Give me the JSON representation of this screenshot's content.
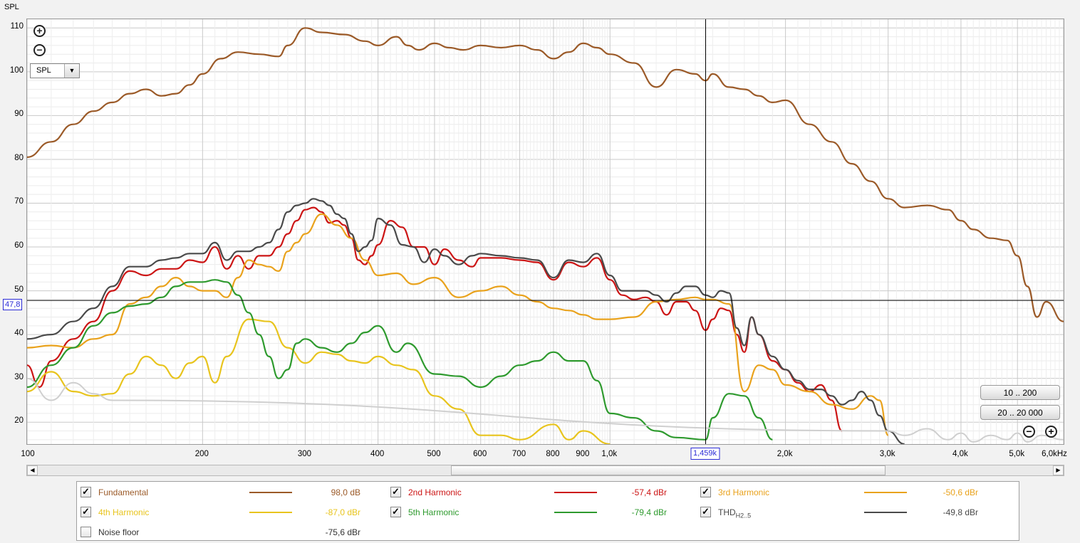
{
  "y_axis_title": "SPL",
  "cursor": {
    "y_readout": "47,8",
    "x_readout": "1,459k"
  },
  "measure_select": {
    "value": "SPL"
  },
  "range_buttons": [
    "10 .. 200",
    "20 .. 20 000"
  ],
  "colors": {
    "fundamental": "#9b5a28",
    "h2": "#cc1515",
    "h3": "#e9a21c",
    "h4": "#e8c41d",
    "h5": "#2e9a2e",
    "thd": "#4a4a4a",
    "noise": "#cfcfcf",
    "cursor": "#2b2bd6"
  },
  "legend": {
    "items": [
      {
        "name": "Fundamental",
        "value": "98,0 dB",
        "color": "#9b5a28",
        "checked": true
      },
      {
        "name": "2nd Harmonic",
        "value": "-57,4 dBr",
        "color": "#cc1515",
        "checked": true
      },
      {
        "name": "3rd Harmonic",
        "value": "-50,6 dBr",
        "color": "#e9a21c",
        "checked": true
      },
      {
        "name": "4th Harmonic",
        "value": "-87,0 dBr",
        "color": "#e8c41d",
        "checked": true
      },
      {
        "name": "5th Harmonic",
        "value": "-79,4 dBr",
        "color": "#2e9a2e",
        "checked": true
      },
      {
        "name": "THD",
        "name_sub": "H2..5",
        "value": "-49,8 dBr",
        "color": "#4a4a4a",
        "checked": true
      },
      {
        "name": "Noise floor",
        "value": "-75,6 dBr",
        "color": "",
        "checked": false
      }
    ]
  },
  "chart_data": {
    "type": "line",
    "xlabel": "Hz",
    "ylabel": "SPL",
    "x_scale": "log",
    "xlim": [
      100,
      6000
    ],
    "ylim": [
      15,
      112
    ],
    "grid": true,
    "x_tick_labels": [
      "100",
      "200",
      "300",
      "400",
      "500",
      "600",
      "700",
      "800",
      "900",
      "1,0k",
      "2,0k",
      "3,0k",
      "4,0k",
      "5,0k",
      "6,0kHz"
    ],
    "y_tick_labels": [
      "20",
      "30",
      "40",
      "50",
      "60",
      "70",
      "80",
      "90",
      "100",
      "110"
    ],
    "cursor": {
      "x": 1459,
      "y": 47.8
    },
    "series": [
      {
        "name": "Fundamental",
        "color": "#9b5a28",
        "x": [
          100,
          110,
          120,
          130,
          140,
          150,
          160,
          170,
          180,
          190,
          200,
          215,
          230,
          250,
          270,
          280,
          300,
          320,
          350,
          380,
          400,
          430,
          450,
          470,
          500,
          530,
          560,
          600,
          650,
          700,
          750,
          800,
          850,
          900,
          950,
          1000,
          1100,
          1200,
          1300,
          1400,
          1459,
          1500,
          1600,
          1700,
          1800,
          1900,
          2000,
          2200,
          2400,
          2600,
          2800,
          3000,
          3200,
          3500,
          3800,
          4000,
          4200,
          4500,
          4800,
          5000,
          5200,
          5400,
          5600,
          6000
        ],
        "y": [
          80.5,
          84,
          88,
          91,
          93,
          95,
          96,
          94.5,
          95,
          97,
          99.5,
          103,
          104.5,
          104,
          103.5,
          106,
          110,
          109,
          108.5,
          107,
          106,
          108,
          106,
          105,
          106.5,
          105.5,
          105,
          106,
          105.5,
          106,
          105,
          103,
          104.5,
          106.5,
          105.5,
          104,
          102,
          96.5,
          100.5,
          99.5,
          98,
          99.5,
          96.5,
          96,
          94.5,
          93,
          93.5,
          88,
          84,
          79,
          75,
          71,
          69,
          69.5,
          68.5,
          66,
          64,
          62,
          61.5,
          58,
          51,
          44,
          47.5,
          43
        ]
      },
      {
        "name": "2nd Harmonic",
        "color": "#cc1515",
        "x": [
          100,
          105,
          110,
          120,
          130,
          140,
          150,
          160,
          170,
          180,
          190,
          200,
          210,
          220,
          230,
          240,
          250,
          260,
          270,
          280,
          290,
          300,
          310,
          320,
          330,
          340,
          350,
          360,
          370,
          380,
          390,
          400,
          420,
          440,
          460,
          480,
          500,
          520,
          550,
          580,
          600,
          650,
          700,
          750,
          800,
          850,
          900,
          950,
          1000,
          1050,
          1100,
          1150,
          1200,
          1250,
          1300,
          1350,
          1400,
          1459,
          1500,
          1550,
          1600,
          1650,
          1700,
          1750,
          1800,
          1900,
          2000,
          2100,
          2200,
          2300,
          2400,
          2500
        ],
        "y": [
          33,
          28,
          34,
          39,
          43,
          50,
          54.5,
          53.5,
          55,
          55,
          57,
          56.5,
          60,
          55,
          58,
          55,
          58,
          58,
          60,
          63,
          66,
          68.5,
          69,
          68,
          65.5,
          66,
          65,
          62,
          57,
          56,
          58,
          60.5,
          66,
          64.5,
          60,
          60,
          56,
          59.5,
          57,
          55.5,
          57.5,
          57.5,
          57,
          56.5,
          52.5,
          56.5,
          55.5,
          57.5,
          52.5,
          49,
          48,
          48.5,
          47.5,
          44.5,
          47.5,
          47.5,
          45.5,
          41,
          43.5,
          46,
          45.5,
          40,
          36,
          44,
          40,
          34,
          32,
          29,
          27,
          28.5,
          25,
          18
        ]
      },
      {
        "name": "3rd Harmonic",
        "color": "#e9a21c",
        "x": [
          100,
          110,
          120,
          130,
          140,
          150,
          160,
          170,
          180,
          190,
          200,
          210,
          220,
          230,
          240,
          250,
          260,
          270,
          280,
          290,
          300,
          320,
          340,
          360,
          380,
          400,
          430,
          460,
          500,
          550,
          600,
          650,
          700,
          750,
          800,
          850,
          900,
          950,
          1000,
          1100,
          1200,
          1300,
          1400,
          1459,
          1500,
          1600,
          1700,
          1800,
          1900,
          2000,
          2200,
          2400,
          2600,
          2800,
          2900,
          3000
        ],
        "y": [
          37,
          37.5,
          37,
          39,
          40,
          47,
          48.5,
          51,
          53,
          51,
          50,
          50,
          48.5,
          53,
          57,
          56,
          55.5,
          54.5,
          59,
          61,
          63,
          67.5,
          65,
          62,
          57,
          53.5,
          54,
          51.5,
          53,
          48.5,
          50,
          51,
          49,
          47.5,
          46,
          45.5,
          44.5,
          43.5,
          43.5,
          44,
          47.5,
          48,
          48.5,
          48,
          48,
          47,
          27,
          33,
          32,
          28.5,
          27,
          24,
          23,
          26,
          25,
          17
        ]
      },
      {
        "name": "4th Harmonic",
        "color": "#e8c41d",
        "x": [
          100,
          110,
          120,
          130,
          140,
          150,
          160,
          170,
          180,
          190,
          200,
          210,
          220,
          240,
          260,
          280,
          300,
          320,
          340,
          360,
          380,
          400,
          430,
          460,
          500,
          550,
          600,
          650,
          700,
          800,
          850,
          900,
          1000
        ],
        "y": [
          27,
          31.5,
          27,
          26,
          26.5,
          31,
          35,
          33,
          30,
          33.5,
          35,
          29,
          35,
          43.5,
          43,
          37,
          33.5,
          36,
          35.5,
          34,
          33.5,
          35,
          33,
          32,
          26,
          23,
          17,
          17,
          16,
          19.5,
          16,
          18,
          15
        ]
      },
      {
        "name": "5th Harmonic",
        "color": "#2e9a2e",
        "x": [
          100,
          110,
          120,
          130,
          140,
          150,
          160,
          170,
          180,
          190,
          200,
          210,
          220,
          230,
          240,
          250,
          260,
          270,
          280,
          290,
          300,
          320,
          340,
          360,
          380,
          400,
          430,
          450,
          500,
          550,
          600,
          650,
          700,
          750,
          800,
          850,
          900,
          950,
          1000,
          1100,
          1200,
          1300,
          1459,
          1500,
          1600,
          1700,
          1800,
          1900
        ],
        "y": [
          28,
          33,
          37,
          42,
          45,
          46.5,
          47,
          48.5,
          51,
          52,
          52,
          52.5,
          52,
          49,
          45,
          40,
          35,
          30,
          32,
          38,
          39,
          37,
          36,
          38,
          40.5,
          42,
          36,
          38,
          31,
          30.5,
          28,
          30.5,
          33,
          34,
          36,
          34,
          34,
          29.5,
          22,
          21,
          18,
          16.5,
          16,
          21,
          26.5,
          26,
          21,
          16
        ]
      },
      {
        "name": "THD",
        "color": "#4a4a4a",
        "x": [
          100,
          110,
          120,
          130,
          140,
          150,
          160,
          170,
          180,
          190,
          200,
          210,
          220,
          230,
          240,
          250,
          260,
          270,
          280,
          290,
          300,
          310,
          320,
          330,
          340,
          350,
          360,
          370,
          380,
          390,
          400,
          420,
          440,
          460,
          480,
          500,
          520,
          550,
          580,
          600,
          650,
          700,
          750,
          800,
          850,
          900,
          950,
          1000,
          1050,
          1100,
          1150,
          1200,
          1250,
          1300,
          1350,
          1400,
          1459,
          1500,
          1550,
          1600,
          1650,
          1700,
          1750,
          1800,
          1900,
          2000,
          2100,
          2200,
          2300,
          2400,
          2500,
          2600,
          2700,
          2800,
          2900,
          3000,
          3200
        ],
        "y": [
          39,
          40,
          43,
          46,
          51,
          55.5,
          55.5,
          57,
          57.5,
          58.5,
          58.5,
          61,
          57,
          59,
          59,
          60,
          61,
          64,
          68,
          69.5,
          70,
          71,
          70.5,
          69.5,
          67.5,
          66.5,
          63,
          59,
          60,
          61.5,
          66.5,
          65,
          60.5,
          60,
          56.5,
          59.5,
          58,
          56,
          58,
          58.5,
          58,
          57.5,
          57,
          53,
          57,
          56.5,
          58.5,
          53.5,
          50,
          50,
          50,
          49,
          47.5,
          49.5,
          51,
          51,
          49,
          48.5,
          50,
          49.5,
          41.5,
          37.5,
          44,
          40,
          35,
          32,
          29.5,
          27.5,
          27.5,
          26,
          24,
          25,
          27,
          25,
          21.5,
          18,
          15
        ]
      },
      {
        "name": "Noise floor",
        "color": "#cfcfcf",
        "x": [
          100,
          110,
          120,
          130,
          140,
          3000,
          3200,
          3500,
          3800,
          4000,
          4200,
          4500,
          4800,
          5000,
          5200,
          5500,
          6000
        ],
        "y": [
          30,
          25,
          29,
          26.5,
          25,
          18,
          17,
          18.5,
          16,
          17.5,
          15.5,
          17,
          16,
          17.5,
          15.5,
          17,
          16
        ]
      }
    ]
  }
}
